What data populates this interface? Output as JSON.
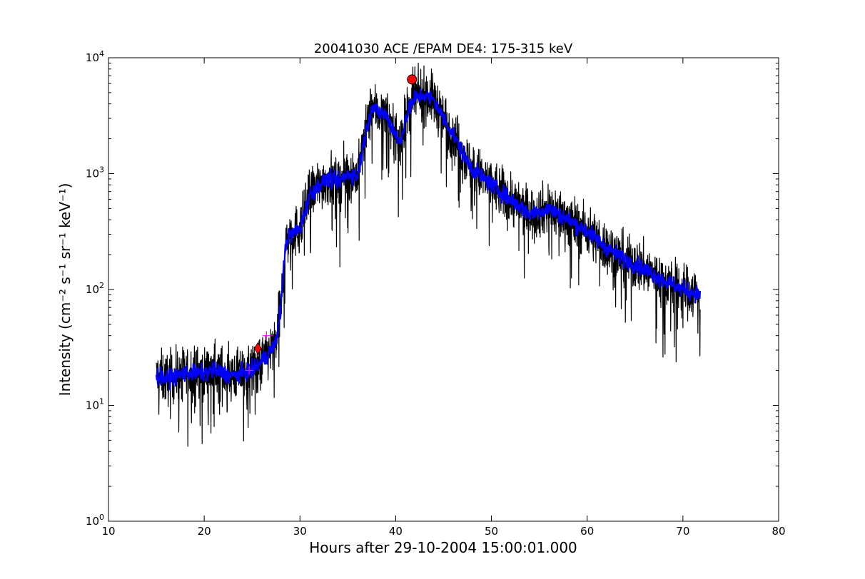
{
  "chart_data": {
    "type": "line",
    "title": "20041030 ACE /EPAM DE4: 175-315 keV",
    "xlabel": "Hours after 29-10-2004 15:00:01.000",
    "ylabel": "Intensity (cm⁻² s⁻¹ sr⁻¹ keV⁻¹)",
    "xlim": [
      10,
      80
    ],
    "ylim": [
      1,
      10000
    ],
    "yscale": "log",
    "grid": false,
    "x_ticks": [
      10,
      20,
      30,
      40,
      50,
      60,
      70,
      80
    ],
    "x_tick_labels": [
      "10",
      "20",
      "30",
      "40",
      "50",
      "60",
      "70",
      "80"
    ],
    "y_ticks": [
      1,
      10,
      100,
      1000,
      10000
    ],
    "y_tick_labels": [
      {
        "base": "10",
        "exp": "0"
      },
      {
        "base": "10",
        "exp": "1"
      },
      {
        "base": "10",
        "exp": "2"
      },
      {
        "base": "10",
        "exp": "3"
      },
      {
        "base": "10",
        "exp": "4"
      }
    ],
    "series": [
      {
        "style": "raw",
        "color": "#000000",
        "x": [
          15,
          16,
          17,
          18,
          19,
          20,
          21,
          22,
          23,
          24,
          25,
          26,
          27,
          27.5,
          28,
          28.5,
          29,
          30,
          31,
          32,
          33,
          34,
          35,
          36,
          37,
          37.5,
          38,
          39,
          40,
          40.5,
          41,
          42,
          43,
          44,
          45,
          46,
          47,
          48,
          50,
          52,
          54,
          56,
          58,
          60,
          62,
          64,
          66,
          68,
          70,
          71.8
        ],
        "y": [
          18,
          17,
          18,
          19,
          19,
          19,
          20,
          19,
          18,
          19,
          20,
          24,
          30,
          35,
          70,
          250,
          300,
          330,
          650,
          800,
          900,
          850,
          1000,
          950,
          2500,
          3800,
          3500,
          3200,
          2200,
          1800,
          3000,
          4500,
          4800,
          4300,
          3000,
          2200,
          1500,
          1100,
          800,
          600,
          450,
          500,
          400,
          320,
          230,
          180,
          150,
          120,
          100,
          90
        ]
      },
      {
        "style": "smoothed",
        "color": "#0000ff",
        "x": [
          15,
          16,
          17,
          18,
          19,
          20,
          21,
          22,
          23,
          24,
          25,
          26,
          27,
          27.5,
          28,
          28.5,
          29,
          30,
          31,
          32,
          33,
          34,
          35,
          36,
          37,
          37.5,
          38,
          39,
          40,
          40.5,
          41,
          42,
          43,
          44,
          45,
          46,
          47,
          48,
          50,
          52,
          54,
          56,
          58,
          60,
          62,
          64,
          66,
          68,
          70,
          71.8
        ],
        "y": [
          18,
          17,
          18,
          19,
          19,
          19,
          20,
          19,
          18,
          19,
          20,
          24,
          30,
          35,
          70,
          250,
          300,
          330,
          650,
          800,
          900,
          850,
          1000,
          950,
          2500,
          3800,
          3500,
          3200,
          2200,
          1800,
          3000,
          4500,
          4800,
          4300,
          3000,
          2200,
          1500,
          1100,
          800,
          600,
          450,
          500,
          400,
          320,
          230,
          180,
          150,
          120,
          100,
          90
        ]
      }
    ],
    "markers": [
      {
        "shape": "circle",
        "color": "#ff0000",
        "x": 41.7,
        "y": 6500
      },
      {
        "shape": "diamond",
        "color": "#ff0000",
        "x": 25.6,
        "y": 31
      },
      {
        "shape": "plus",
        "color": "#ff00ff",
        "x": 24.7,
        "y": 20
      },
      {
        "shape": "plus",
        "color": "#ff00ff",
        "x": 26.5,
        "y": 40
      }
    ]
  }
}
